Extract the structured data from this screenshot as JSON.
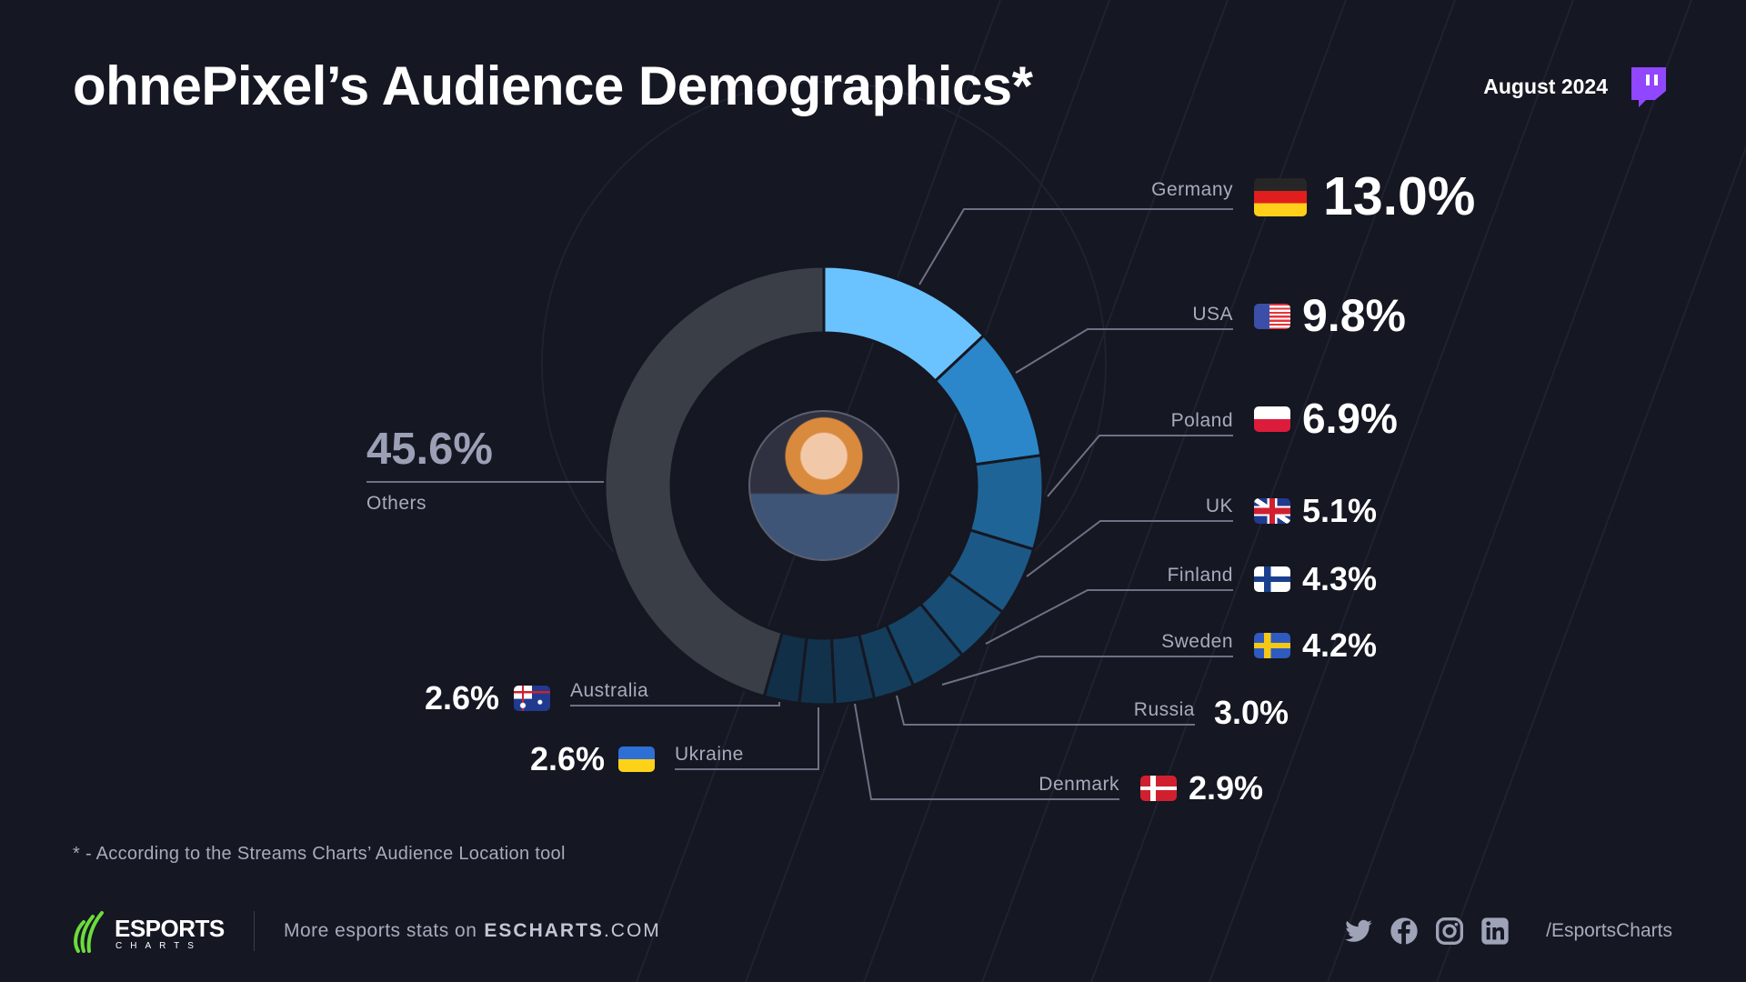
{
  "header": {
    "title": "ohnePixel’s Audience Demographics*",
    "date": "August 2024",
    "platform_icon": "twitch-icon"
  },
  "chart_data": {
    "type": "pie",
    "variant": "donut",
    "categories": [
      "Germany",
      "USA",
      "Poland",
      "UK",
      "Finland",
      "Sweden",
      "Russia",
      "Denmark",
      "Ukraine",
      "Australia",
      "Others"
    ],
    "values": [
      13.0,
      9.8,
      6.9,
      5.1,
      4.3,
      4.2,
      3.0,
      2.9,
      2.6,
      2.6,
      45.6
    ],
    "labels": [
      "13.0%",
      "9.8%",
      "6.9%",
      "5.1%",
      "4.3%",
      "4.2%",
      "3.0%",
      "2.9%",
      "2.6%",
      "2.6%",
      "45.6%"
    ],
    "colors": [
      "#6ac3ff",
      "#2b87c9",
      "#1f6496",
      "#1c5886",
      "#184d75",
      "#164467",
      "#143c5b",
      "#133752",
      "#12324b",
      "#112f46",
      "#3a3f47"
    ],
    "unit": "%"
  },
  "footnote": "* - According to the Streams Charts’ Audience Location tool",
  "footer": {
    "logo_text": "ESPORTS",
    "logo_sub": "CHARTS",
    "more_text": "More esports stats on",
    "site_bold": "ESCHARTS",
    "site_tail": ".COM",
    "handle": "/EsportsCharts",
    "social_icons": [
      "twitter-icon",
      "facebook-icon",
      "instagram-icon",
      "linkedin-icon"
    ]
  }
}
